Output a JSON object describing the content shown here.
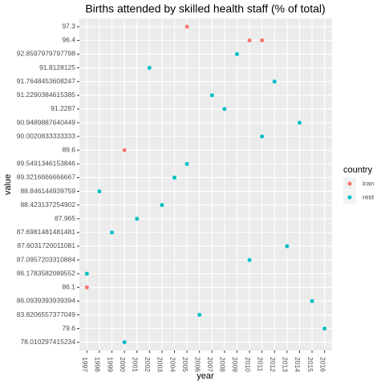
{
  "chart_data": {
    "type": "scatter",
    "title": "Births attended by skilled health staff (% of total)",
    "x_label": "year",
    "y_label": "value",
    "legend_title": "country",
    "legend_position": "right",
    "grid": true,
    "xlim": [
      1996.4,
      2016.6
    ],
    "xticks": [
      1997,
      1998,
      1999,
      2000,
      2001,
      2002,
      2003,
      2004,
      2005,
      2006,
      2007,
      2008,
      2009,
      2010,
      2011,
      2012,
      2013,
      2014,
      2015,
      2016
    ],
    "y_categories": [
      "97.3",
      "96.4",
      "92.8597979797798",
      "91.8128125",
      "91.7648453608247",
      "91.2290384615385",
      "91.2287",
      "90.9489887640449",
      "90.0020833333333",
      "89.6",
      "89.5491346153846",
      "89.3216666666667",
      "88.846144939759",
      "88.423137254902",
      "87.965",
      "87.6981481481481",
      "87.6031720011081",
      "87.0957203310884",
      "86.1783582089552",
      "86.1",
      "86.0939393939394",
      "83.8206557377049",
      "79.6",
      "78.010297415234"
    ],
    "series": [
      {
        "name": "iran",
        "color": "#F8766D",
        "x": [
          2005,
          2010,
          2011,
          2000,
          1997
        ],
        "values": [
          97.3,
          96.4,
          96.4,
          89.6,
          86.1
        ]
      },
      {
        "name": "rest",
        "color": "#00BFC4",
        "x": [
          2009,
          2002,
          2012,
          2007,
          2008,
          2014,
          2011,
          2005,
          2004,
          1998,
          2003,
          2001,
          1999,
          2013,
          2010,
          1997,
          2015,
          2006,
          2016,
          2000
        ],
        "values": [
          92.8597979797798,
          91.8128125,
          91.7648453608247,
          91.2290384615385,
          91.2287,
          90.9489887640449,
          90.0020833333333,
          89.5491346153846,
          89.3216666666667,
          88.846144939759,
          88.423137254902,
          87.965,
          87.6981481481481,
          87.6031720011081,
          87.0957203310884,
          86.1783582089552,
          86.0939393939394,
          83.8206557377049,
          79.6,
          78.010297415234
        ]
      }
    ]
  }
}
